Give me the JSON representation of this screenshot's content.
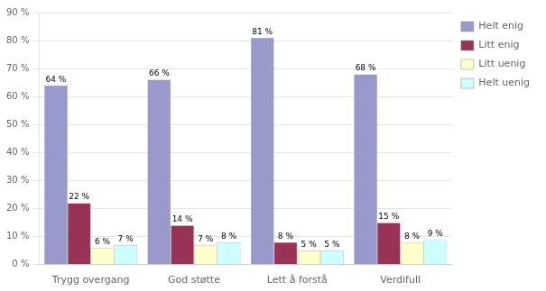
{
  "chart_data": {
    "type": "bar",
    "categories": [
      "Trygg overgang",
      "God støtte",
      "Lett å forstå",
      "Verdifull"
    ],
    "series": [
      {
        "name": "Helt enig",
        "color": "#9999CC",
        "values": [
          64,
          66,
          81,
          68
        ],
        "value_labels": [
          "64 %",
          "66 %",
          "81 %",
          "68 %"
        ]
      },
      {
        "name": "Litt enig",
        "color": "#993355",
        "values": [
          22,
          14,
          8,
          15
        ],
        "value_labels": [
          "22 %",
          "14 %",
          "8 %",
          "15 %"
        ]
      },
      {
        "name": "Litt uenig",
        "color": "#FFFFCC",
        "values": [
          6,
          7,
          5,
          8
        ],
        "value_labels": [
          "6 %",
          "7 %",
          "5 %",
          "8 %"
        ]
      },
      {
        "name": "Helt uenig",
        "color": "#CCFFFF",
        "values": [
          7,
          8,
          5,
          9
        ],
        "value_labels": [
          "7 %",
          "8 %",
          "5 %",
          "9 %"
        ]
      }
    ],
    "ylim": [
      0,
      90
    ],
    "yticks": [
      {
        "value": 0,
        "label": "0 %"
      },
      {
        "value": 10,
        "label": "10 %"
      },
      {
        "value": 20,
        "label": "20 %"
      },
      {
        "value": 30,
        "label": "30 %"
      },
      {
        "value": 40,
        "label": "40 %"
      },
      {
        "value": 50,
        "label": "50 %"
      },
      {
        "value": 60,
        "label": "60 %"
      },
      {
        "value": 70,
        "label": "70 %"
      },
      {
        "value": 80,
        "label": "80 %"
      },
      {
        "value": 90,
        "label": "90 %"
      }
    ],
    "grid": true,
    "legend": "right",
    "data_labels": true
  }
}
